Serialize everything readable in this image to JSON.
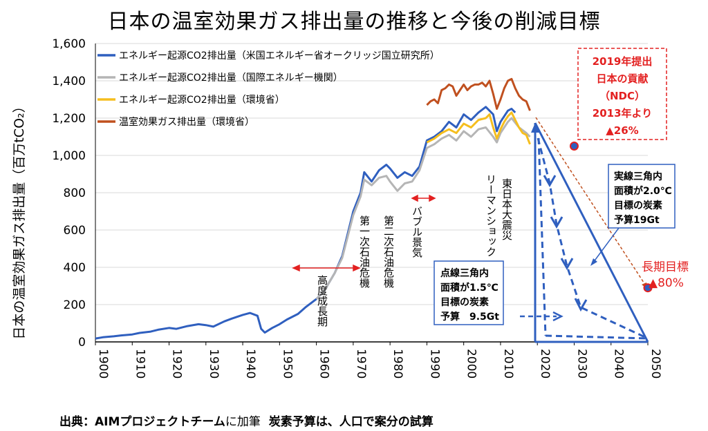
{
  "title": "日本の温室効果ガス排出量の推移と今後の削減目標",
  "source": {
    "prefix": "出典：AIMプロジェクトチーム",
    "middle": "に加筆",
    "suffix": "炭素予算は、人口で案分の試算"
  },
  "colors": {
    "blue": "#2f5fbf",
    "gray": "#b5b5b5",
    "yellow": "#f5be1e",
    "orange": "#c0501f",
    "red": "#e32020",
    "axis": "#000000"
  },
  "chart_data": {
    "type": "line",
    "ylabel": "日本の温室効果ガス排出量（百万tCO₂）",
    "xlim": [
      1900,
      2050
    ],
    "ylim": [
      0,
      1600
    ],
    "xticks": [
      "1900",
      "1910",
      "1920",
      "1930",
      "1940",
      "1950",
      "1960",
      "1970",
      "1980",
      "1990",
      "2000",
      "2010",
      "2020",
      "2030",
      "2040",
      "2050"
    ],
    "yticks": [
      "0",
      "200",
      "400",
      "600",
      "800",
      "1,000",
      "1,200",
      "1,400",
      "1,600"
    ],
    "legend_position": "top-left",
    "series": [
      {
        "name": "エネルギー起源CO2排出量（米国エネルギー省オークリッジ国立研究所）",
        "color": "#2f5fbf",
        "x": [
          1900,
          1902,
          1905,
          1907,
          1910,
          1912,
          1915,
          1917,
          1920,
          1922,
          1925,
          1928,
          1930,
          1932,
          1935,
          1937,
          1940,
          1942,
          1944,
          1945,
          1946,
          1948,
          1950,
          1952,
          1955,
          1957,
          1960,
          1962,
          1965,
          1967,
          1970,
          1972,
          1973,
          1975,
          1977,
          1979,
          1980,
          1982,
          1984,
          1986,
          1988,
          1990,
          1992,
          1994,
          1996,
          1998,
          2000,
          2002,
          2004,
          2006,
          2008,
          2009,
          2010,
          2012,
          2013,
          2014
        ],
        "y": [
          18,
          25,
          30,
          35,
          40,
          48,
          55,
          65,
          75,
          70,
          85,
          95,
          90,
          82,
          110,
          125,
          145,
          155,
          140,
          70,
          50,
          75,
          95,
          120,
          150,
          185,
          230,
          270,
          370,
          460,
          700,
          800,
          910,
          860,
          920,
          950,
          930,
          880,
          910,
          890,
          940,
          1080,
          1100,
          1130,
          1180,
          1150,
          1220,
          1190,
          1230,
          1260,
          1220,
          1130,
          1180,
          1240,
          1250,
          1230
        ]
      },
      {
        "name": "エネルギー起源CO2排出量（国際エネルギー機関）",
        "color": "#b5b5b5",
        "x": [
          1960,
          1962,
          1965,
          1967,
          1970,
          1972,
          1973,
          1975,
          1977,
          1979,
          1980,
          1982,
          1984,
          1986,
          1988,
          1990,
          1992,
          1994,
          1996,
          1998,
          2000,
          2002,
          2004,
          2006,
          2008,
          2009,
          2010,
          2012,
          2013,
          2015,
          2017,
          2018
        ],
        "y": [
          230,
          270,
          370,
          450,
          680,
          780,
          870,
          840,
          880,
          890,
          860,
          810,
          850,
          860,
          920,
          1040,
          1060,
          1090,
          1110,
          1080,
          1130,
          1100,
          1140,
          1150,
          1100,
          1070,
          1120,
          1180,
          1200,
          1150,
          1120,
          1100
        ]
      },
      {
        "name": "エネルギー起源CO2排出量（環境省）",
        "color": "#f5be1e",
        "x": [
          1990,
          1992,
          1994,
          1996,
          1998,
          2000,
          2002,
          2004,
          2006,
          2007,
          2008,
          2009,
          2010,
          2011,
          2012,
          2013,
          2014,
          2015,
          2016,
          2017,
          2018
        ],
        "y": [
          1070,
          1090,
          1120,
          1140,
          1120,
          1170,
          1150,
          1190,
          1200,
          1220,
          1150,
          1090,
          1140,
          1180,
          1210,
          1230,
          1190,
          1150,
          1120,
          1110,
          1060
        ]
      },
      {
        "name": "温室効果ガス排出量（環境省）",
        "color": "#c0501f",
        "x": [
          1990,
          1991,
          1992,
          1993,
          1994,
          1995,
          1996,
          1997,
          1998,
          1999,
          2000,
          2001,
          2002,
          2003,
          2004,
          2005,
          2006,
          2007,
          2008,
          2009,
          2010,
          2011,
          2012,
          2013,
          2014,
          2015,
          2016,
          2017,
          2018
        ],
        "y": [
          1270,
          1290,
          1300,
          1280,
          1350,
          1360,
          1380,
          1370,
          1320,
          1350,
          1380,
          1350,
          1370,
          1380,
          1380,
          1390,
          1370,
          1400,
          1330,
          1250,
          1300,
          1360,
          1400,
          1410,
          1360,
          1320,
          1300,
          1290,
          1240
        ]
      }
    ],
    "annotations": {
      "high_growth": "高度成長期",
      "oil1": "第一次石油危機",
      "oil2": "第二次石油危機",
      "bubble": "バブル景気",
      "lehman": "リーマンショック",
      "quake": "東日本大震災",
      "ndc": [
        "2019年提出",
        "日本の貢献",
        "（NDC）",
        "2013年より",
        "▲26%"
      ],
      "solid_budget": [
        "実線三角内",
        "面積が2.0℃",
        "目標の炭素",
        "予算19Gt"
      ],
      "dotted_budget": [
        "点線三角内",
        "面積が1.5℃",
        "目標の炭素",
        "予算　9.5Gt"
      ],
      "long_term_label": "長期目標",
      "long_term_value": "▲80%"
    },
    "ndc_point": {
      "x": 2030,
      "y": 1050
    },
    "long_term_point": {
      "x": 2050,
      "y": 290
    }
  }
}
